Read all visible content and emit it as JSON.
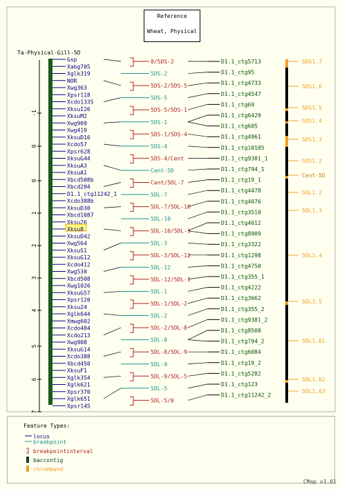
{
  "reference": {
    "line1": "Reference",
    "line2": "Wheat, Physical"
  },
  "map_title": "Ta-Physical-Gill-5D",
  "legend": {
    "title": "Feature Types:",
    "items": [
      {
        "label": "locus",
        "color": "#000080"
      },
      {
        "label": "breakpoint",
        "color": "#1e9090"
      },
      {
        "label": "breakpointinterval",
        "color": "#b02020"
      },
      {
        "label": "baccontig",
        "color": "#104010"
      },
      {
        "label": "chromband",
        "color": "#f0a020"
      }
    ]
  },
  "version": "CMap v1.01",
  "colors": {
    "locus": "#000080",
    "breakpoint": "#1e9090",
    "interval": "#b02020",
    "contig": "#000000",
    "band": "#f0a020",
    "map_bar": "#1a5a1a",
    "contig_bar": "#000000"
  },
  "scale_ticks": [
    "-1",
    "0",
    "0",
    "1",
    "2",
    "3",
    "4",
    "5",
    "6",
    "7"
  ],
  "loci": [
    "Gsp",
    "Xabg705",
    "Xglk319",
    "NOR",
    "Xwg363",
    "Xpsr118",
    "Xcdo1335",
    "XksuI26",
    "XksuM2",
    "Xwg909",
    "Xwg419",
    "XksuD16",
    "Xcdo57",
    "Xpsr628",
    "XksuG44",
    "XksuA3",
    "XksuA1",
    "Xbcd508b",
    "Xbcd204",
    "D1.1_ctg11242_1",
    "Xcdo388b",
    "XksuD30",
    "Xbcd1087",
    "Xksu26",
    "Xksu8",
    "XksuD42",
    "Xwg564",
    "XksuS1",
    "XksuG12",
    "Xcdo412",
    "Xwg530",
    "Xbcd508",
    "Xwg1026",
    "XksuG57",
    "Xpsr120",
    "Xksu24",
    "Xglk644",
    "Xmwg602",
    "Xcdo484",
    "Xcdo213",
    "Xwg908",
    "XksuG14",
    "Xcdo388",
    "Xbcd450",
    "XksuF1",
    "Xglk354",
    "Xglk621",
    "Xpsr370",
    "Xglk651",
    "Xpsr145"
  ],
  "highlight_locus": "Xksu8",
  "breakpoints": [
    {
      "label": "0/5DS-2",
      "type": "interval"
    },
    {
      "label": "5DS-2",
      "type": "breakpoint"
    },
    {
      "label": "5DS-2/5DS-5",
      "type": "interval"
    },
    {
      "label": "5DS-5",
      "type": "breakpoint"
    },
    {
      "label": "5DS-5/5DS-1",
      "type": "interval"
    },
    {
      "label": "5DS-1",
      "type": "breakpoint"
    },
    {
      "label": "5DS-1/5DS-4",
      "type": "interval"
    },
    {
      "label": "5DS-4",
      "type": "breakpoint"
    },
    {
      "label": "5DS-4/Cent",
      "type": "interval"
    },
    {
      "label": "Cent-5D",
      "type": "breakpoint"
    },
    {
      "label": "Cent/5DL-7",
      "type": "interval"
    },
    {
      "label": "5DL-7",
      "type": "breakpoint"
    },
    {
      "label": "5DL-7/5DL-10",
      "type": "interval"
    },
    {
      "label": "5DL-10",
      "type": "breakpoint"
    },
    {
      "label": "5DL-10/5DL-3",
      "type": "interval"
    },
    {
      "label": "5DL-3",
      "type": "breakpoint"
    },
    {
      "label": "5DL-3/5DL-12",
      "type": "interval"
    },
    {
      "label": "5DL-12",
      "type": "breakpoint"
    },
    {
      "label": "5DL-12/5DL-1",
      "type": "interval"
    },
    {
      "label": "5DL-1",
      "type": "breakpoint"
    },
    {
      "label": "5DL-1/5DL-2",
      "type": "interval"
    },
    {
      "label": "5DL-2",
      "type": "breakpoint"
    },
    {
      "label": "5DL-2/5DL-8",
      "type": "interval"
    },
    {
      "label": "5DL-8",
      "type": "breakpoint"
    },
    {
      "label": "5DL-8/5DL-9",
      "type": "interval"
    },
    {
      "label": "5DL-9",
      "type": "breakpoint"
    },
    {
      "label": "5DL-9/5DL-5",
      "type": "interval"
    },
    {
      "label": "5DL-5",
      "type": "breakpoint"
    },
    {
      "label": "5DL-5/0",
      "type": "interval"
    }
  ],
  "contigs": [
    "D1.1_ctg5713",
    "D1.1_ctg95",
    "D1.1_ctg4733",
    "D1.1_ctg4547",
    "D1.1_ctg69",
    "D1.1_ctg6429",
    "D1.1_ctg605",
    "D1.1_ctg4961",
    "D1.1_ctg10105",
    "D1.1_ctg9381_1",
    "D1.1_ctg794_1",
    "D1.1_ctg19_1",
    "D1.1_ctg4478",
    "D1.1_ctg4076",
    "D1.1_ctg3510",
    "D1.1_ctg4612",
    "D1.1_ctg8909",
    "D1.1_ctg3322",
    "D1.1_ctg1298",
    "D1.1_ctg4750",
    "D1.1_ctg355_1",
    "D1.1_ctg4222",
    "D1.1_ctg3662",
    "D1.1_ctg355_2",
    "D1.1_ctg9381_2",
    "D1.1_ctg8508",
    "D1.1_ctg794_2",
    "D1.1_ctg6084",
    "D1.1_ctg19_2",
    "D1.1_ctg5282",
    "D1.1_ctg123",
    "D1.1_ctg11242_2"
  ],
  "bands": [
    "5DS1.7",
    "5DS1.6",
    "5DS1.5",
    "5DS1.4",
    "5DS1.3",
    "5DS1.2",
    "Cent-5D",
    "5DL1.2",
    "5DL1.3",
    "5DL1.4",
    "5DL1.5",
    "5DL1.61",
    "5DL1.62",
    "5DL1.63"
  ]
}
